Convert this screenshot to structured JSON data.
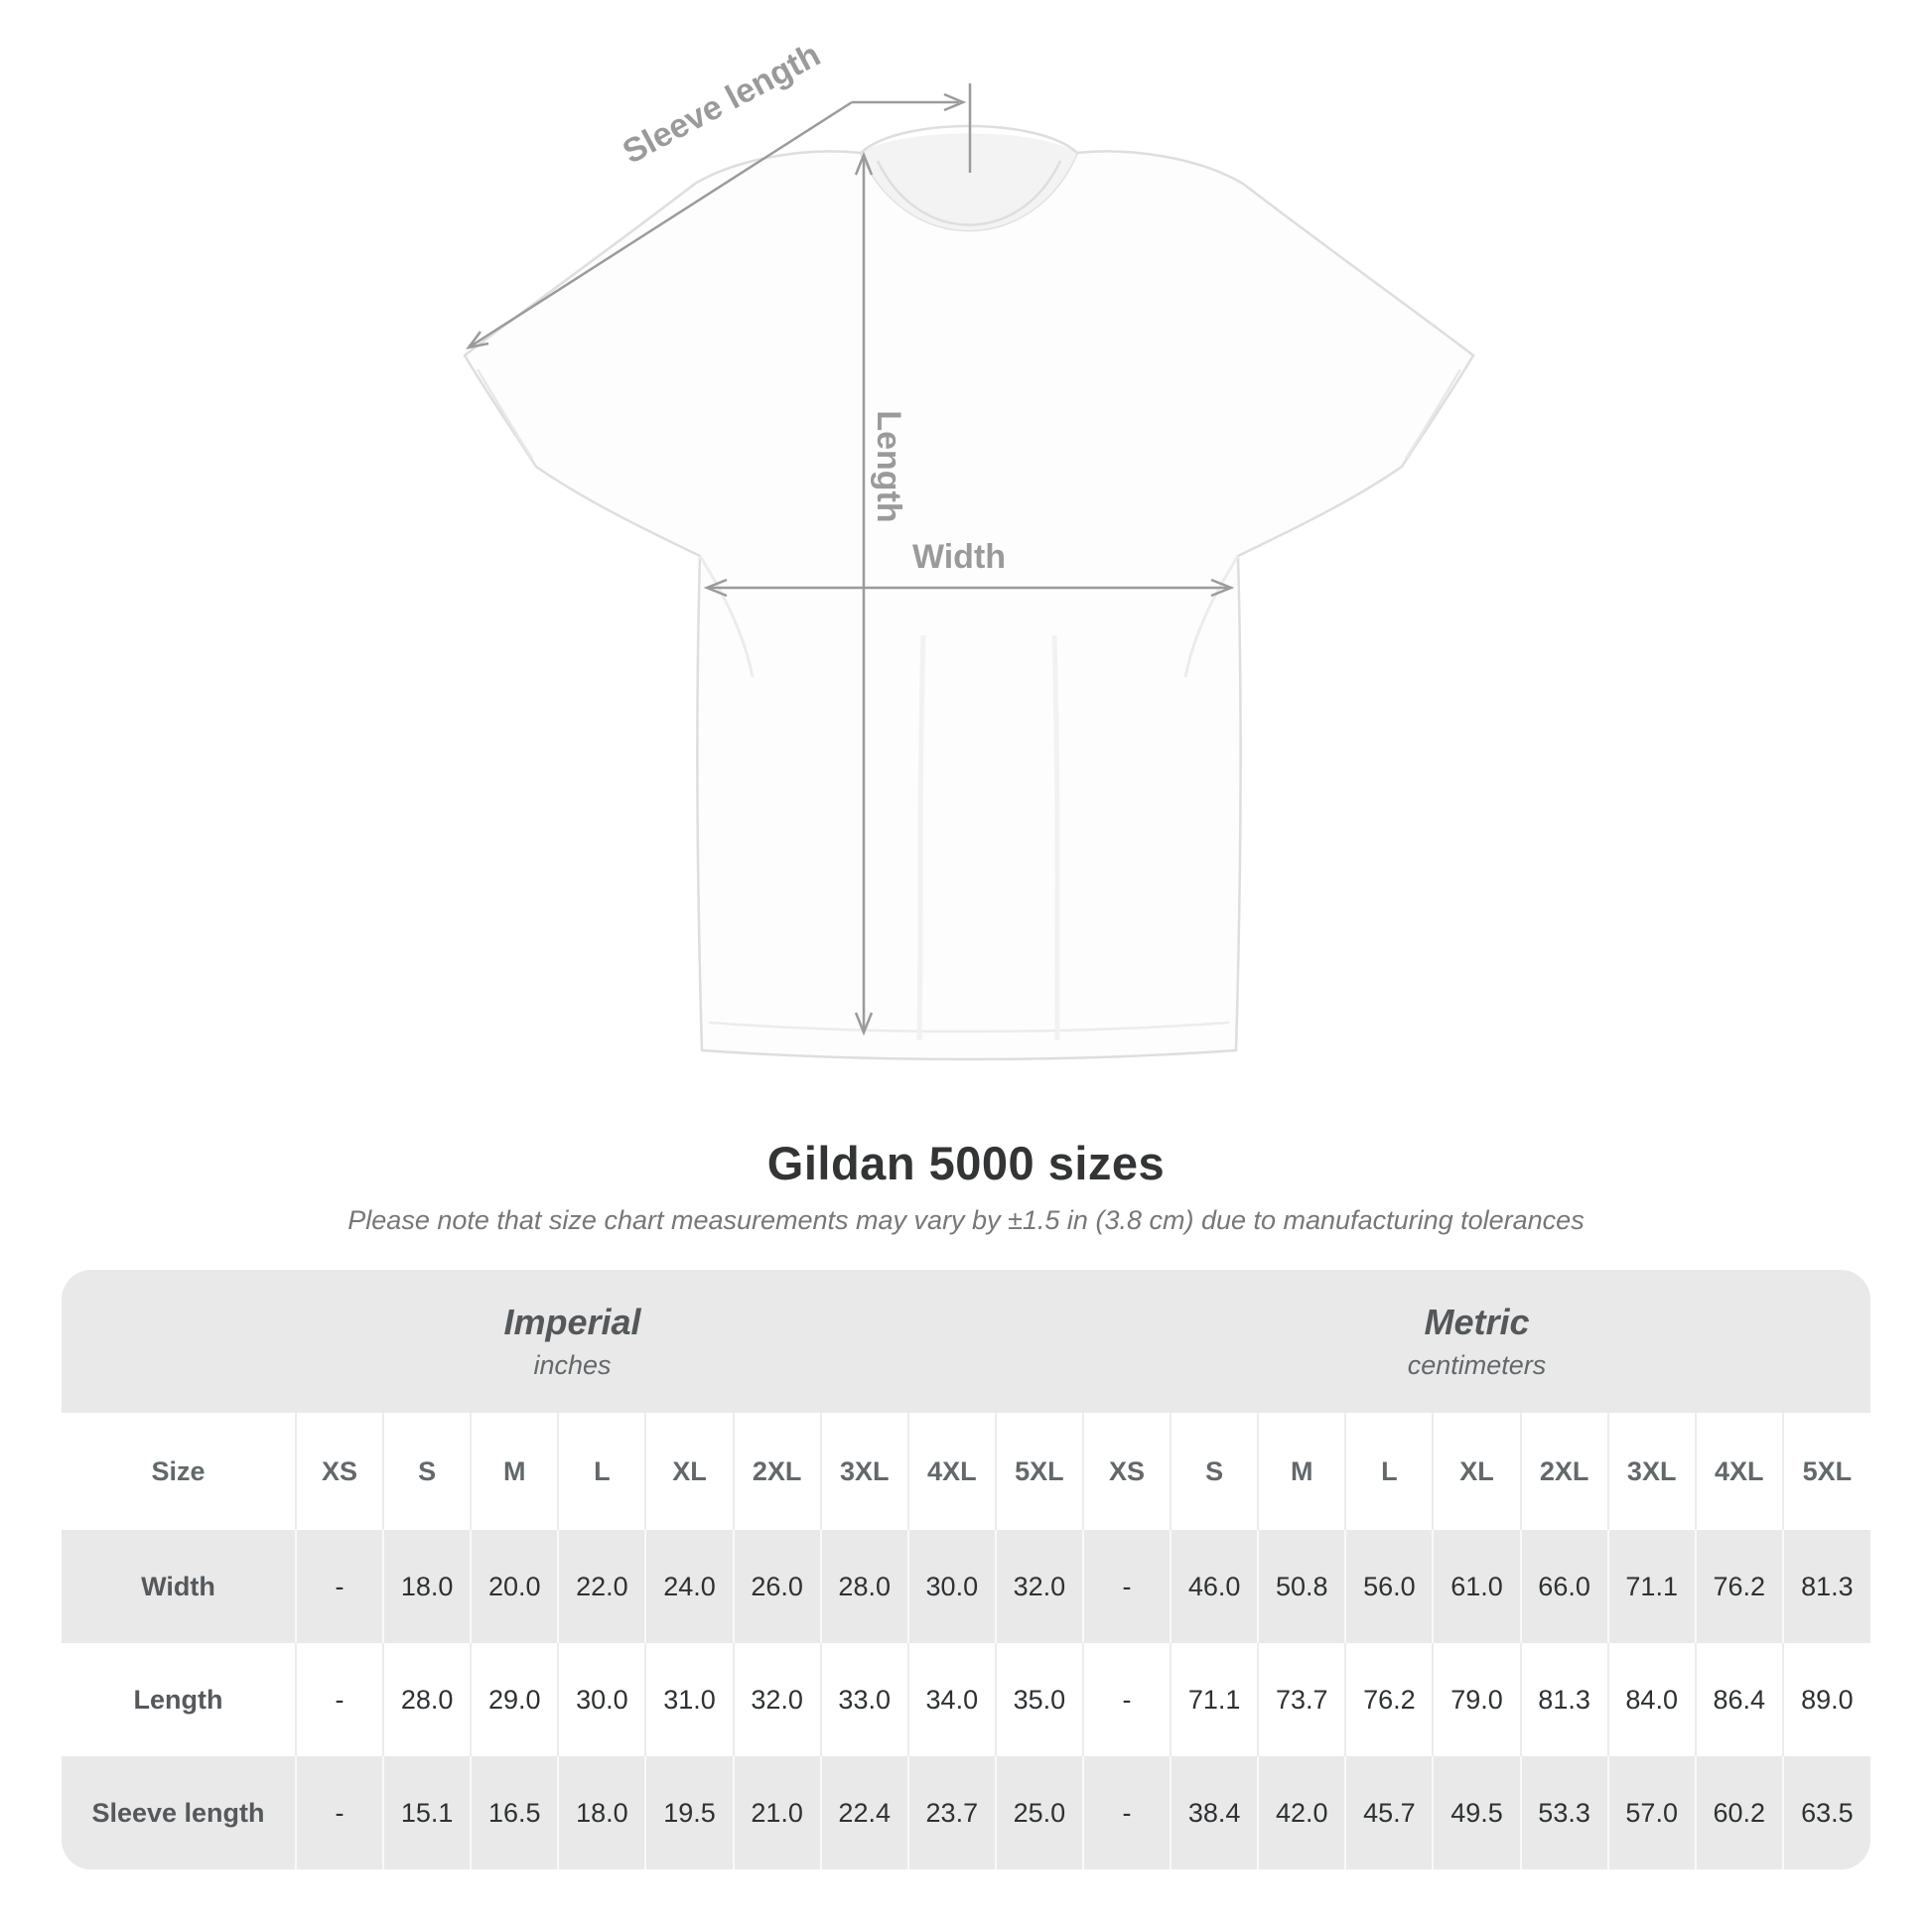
{
  "diagram": {
    "sleeve_length_label": "Sleeve length",
    "length_label": "Length",
    "width_label": "Width"
  },
  "header": {
    "title": "Gildan 5000 sizes",
    "note": "Please note that size chart measurements may vary by ±1.5 in (3.8 cm) due to manufacturing tolerances"
  },
  "table": {
    "unit_groups": [
      {
        "label": "Imperial",
        "sublabel": "inches"
      },
      {
        "label": "Metric",
        "sublabel": "centimeters"
      }
    ],
    "size_column_header": "Size",
    "sizes": [
      "XS",
      "S",
      "M",
      "L",
      "XL",
      "2XL",
      "3XL",
      "4XL",
      "5XL"
    ],
    "rows": [
      {
        "label": "Width",
        "imperial": [
          "-",
          "18.0",
          "20.0",
          "22.0",
          "24.0",
          "26.0",
          "28.0",
          "30.0",
          "32.0"
        ],
        "metric": [
          "-",
          "46.0",
          "50.8",
          "56.0",
          "61.0",
          "66.0",
          "71.1",
          "76.2",
          "81.3"
        ]
      },
      {
        "label": "Length",
        "imperial": [
          "-",
          "28.0",
          "29.0",
          "30.0",
          "31.0",
          "32.0",
          "33.0",
          "34.0",
          "35.0"
        ],
        "metric": [
          "-",
          "71.1",
          "73.7",
          "76.2",
          "79.0",
          "81.3",
          "84.0",
          "86.4",
          "89.0"
        ]
      },
      {
        "label": "Sleeve length",
        "imperial": [
          "-",
          "15.1",
          "16.5",
          "18.0",
          "19.5",
          "21.0",
          "22.4",
          "23.7",
          "25.0"
        ],
        "metric": [
          "-",
          "38.4",
          "42.0",
          "45.7",
          "49.5",
          "53.3",
          "57.0",
          "60.2",
          "63.5"
        ]
      }
    ]
  },
  "colors": {
    "annotation_gray": "#9b9b9b",
    "table_band_gray": "#e9e9e9",
    "value_text": "#2e3133",
    "label_text": "#55595c"
  },
  "chart_data": {
    "type": "table",
    "title": "Gildan 5000 sizes",
    "tolerance_note": "±1.5 in (3.8 cm)",
    "units": {
      "imperial": "inches",
      "metric": "centimeters"
    },
    "sizes": [
      "XS",
      "S",
      "M",
      "L",
      "XL",
      "2XL",
      "3XL",
      "4XL",
      "5XL"
    ],
    "measurements": [
      {
        "name": "Width",
        "imperial_in": [
          null,
          18.0,
          20.0,
          22.0,
          24.0,
          26.0,
          28.0,
          30.0,
          32.0
        ],
        "metric_cm": [
          null,
          46.0,
          50.8,
          56.0,
          61.0,
          66.0,
          71.1,
          76.2,
          81.3
        ]
      },
      {
        "name": "Length",
        "imperial_in": [
          null,
          28.0,
          29.0,
          30.0,
          31.0,
          32.0,
          33.0,
          34.0,
          35.0
        ],
        "metric_cm": [
          null,
          71.1,
          73.7,
          76.2,
          79.0,
          81.3,
          84.0,
          86.4,
          89.0
        ]
      },
      {
        "name": "Sleeve length",
        "imperial_in": [
          null,
          15.1,
          16.5,
          18.0,
          19.5,
          21.0,
          22.4,
          23.7,
          25.0
        ],
        "metric_cm": [
          null,
          38.4,
          42.0,
          45.7,
          49.5,
          53.3,
          57.0,
          60.2,
          63.5
        ]
      }
    ]
  }
}
